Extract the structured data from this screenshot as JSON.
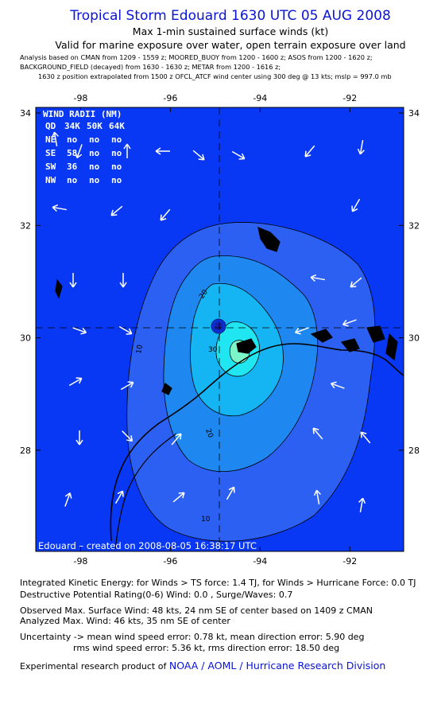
{
  "header": {
    "title": "Tropical Storm Edouard 1630 UTC 05 AUG 2008",
    "subtitle": "Max 1-min sustained surface winds (kt)",
    "validity": "Valid for marine exposure over water, open terrain exposure over land",
    "analysis_lines": [
      "Analysis based on  CMAN from 1209 - 1559 z;  MOORED_BUOY from 1200 - 1600 z;  ASOS from 1200 - 1620 z;",
      "BACKGROUND_FIELD (decayed) from 1630 - 1630 z;  METAR from 1200 - 1616 z;",
      "1630 z position extrapolated from 1500 z OFCL_ATCF wind center using 300 deg @ 13 kts; mslp = 997.0 mb"
    ]
  },
  "wind_radii": {
    "title": "WIND RADII (NM)",
    "header": [
      "QD",
      "34K",
      "50K",
      "64K"
    ],
    "rows": [
      [
        "NE",
        "no",
        "no",
        "no"
      ],
      [
        "SE",
        "58",
        "no",
        "no"
      ],
      [
        "SW",
        "36",
        "no",
        "no"
      ],
      [
        "NW",
        "no",
        "no",
        "no"
      ]
    ]
  },
  "credit": "Edouard  –  created on 2008-08-05 16:38:17 UTC",
  "colors": {
    "ocean": "#0838f4",
    "title": "#0a14d6",
    "arrow": "#ffffff",
    "land": "#000000"
  },
  "chart_data": {
    "type": "contour",
    "x_ticks": [
      -98,
      -96,
      -94,
      -92
    ],
    "y_ticks": [
      34,
      32,
      30,
      28
    ],
    "xlim": [
      -99.0,
      -90.8
    ],
    "ylim": [
      26.2,
      34.1
    ],
    "storm_center": {
      "lon": -95.0,
      "lat": 30.07
    },
    "contours": [
      {
        "level": 10,
        "label": "10"
      },
      {
        "level": 20,
        "label": "20"
      },
      {
        "level": 30,
        "label": "30"
      },
      {
        "level": 40,
        "label": "40"
      }
    ]
  },
  "footer": {
    "ike": "Integrated Kinetic Energy:  for Winds > TS force: 1.4 TJ,  for Winds > Hurricane Force: 0.0 TJ",
    "dpr": "Destructive Potential Rating(0-6)   Wind: 0.0 , Surge/Waves: 0.7",
    "obs": "Observed Max. Surface Wind: 48 kts, 24 nm SE of center based on 1409 z CMAN",
    "analyzed": "Analyzed Max. Wind: 46 kts, 35 nm SE of center",
    "unc1": "Uncertainty -> mean wind speed error: 0.78 kt,   mean direction error: 5.90 deg",
    "unc2": "rms wind speed error: 5.36 kt,   rms direction error: 18.50 deg",
    "product_prefix": "Experimental research product of",
    "product_org": "NOAA / AOML / Hurricane Research Division"
  }
}
